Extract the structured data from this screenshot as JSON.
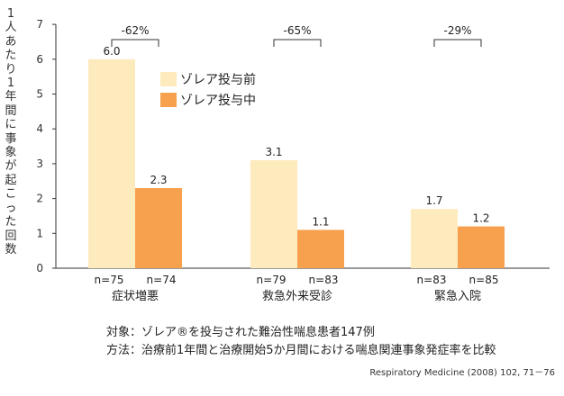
{
  "chart_data": {
    "type": "bar",
    "ylabel": "1人あたり1年間に事象が起こった回数",
    "ylim": [
      0,
      7
    ],
    "yticks": [
      0,
      1,
      2,
      3,
      4,
      5,
      6,
      7
    ],
    "categories": [
      "症状増悪",
      "救急外来受診",
      "緊急入院"
    ],
    "series": [
      {
        "name": "ゾレア投与前",
        "color": "#fdebbe",
        "values": [
          6.0,
          3.1,
          1.7
        ],
        "value_labels": [
          "6.0",
          "3.1",
          "1.7"
        ],
        "n_labels": [
          "n=75",
          "n=79",
          "n=83"
        ]
      },
      {
        "name": "ゾレア投与中",
        "color": "#f7a04d",
        "values": [
          2.3,
          1.1,
          1.2
        ],
        "value_labels": [
          "2.3",
          "1.1",
          "1.2"
        ],
        "n_labels": [
          "n=74",
          "n=83",
          "n=85"
        ]
      }
    ],
    "reductions": [
      "-62%",
      "-65%",
      "-29%"
    ],
    "legend_position": "right",
    "grid": false
  },
  "footer": {
    "line1": "対象：ゾレア®を投与された難治性喘息患者147例",
    "line2": "方法：治療前1年間と治療開始5か月間における喘息関連事象発症率を比較"
  },
  "source": "Respiratory Medicine (2008) 102, 71－76"
}
